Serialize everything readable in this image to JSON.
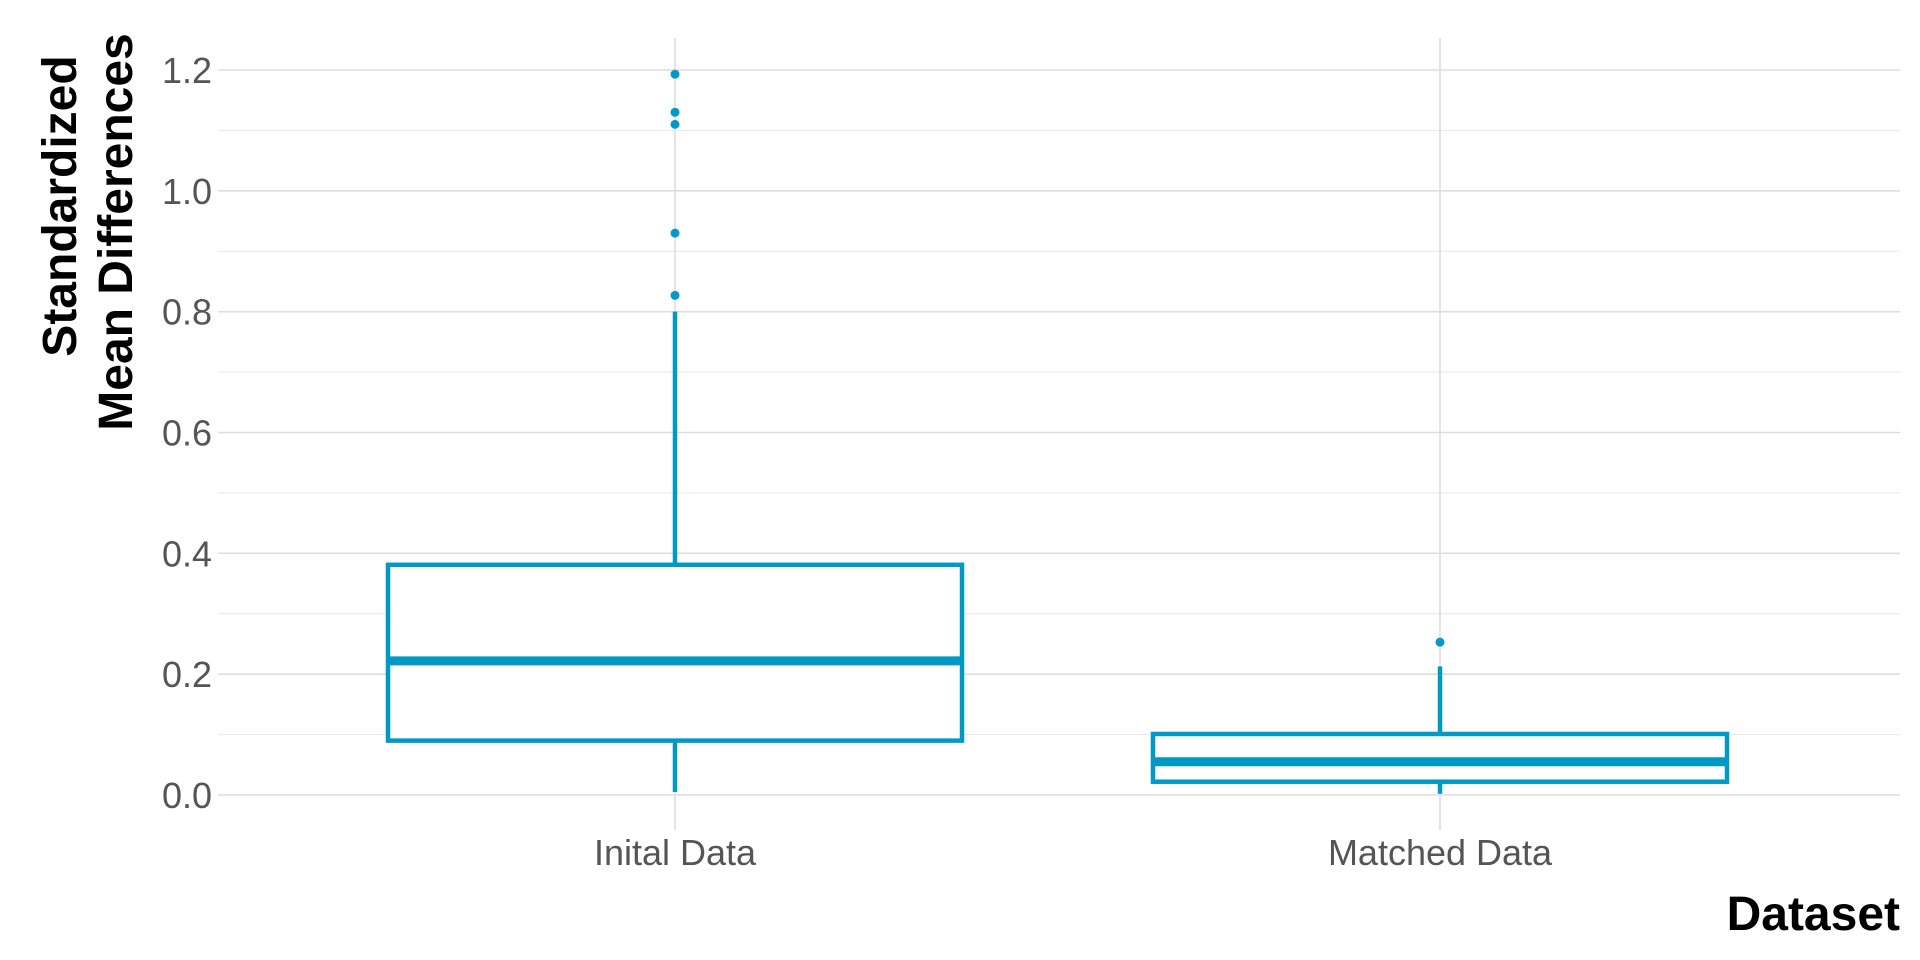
{
  "chart_data": {
    "type": "boxplot",
    "xlabel": "Dataset",
    "ylabel_lines": [
      "Standardized",
      "Mean Differences"
    ],
    "ylim": [
      -0.05,
      1.25
    ],
    "y_ticks": [
      0.0,
      0.2,
      0.4,
      0.6,
      0.8,
      1.0,
      1.2
    ],
    "y_tick_labels": [
      "0.0",
      "0.2",
      "0.4",
      "0.6",
      "0.8",
      "1.0",
      "1.2"
    ],
    "categories": [
      "Inital Data",
      "Matched Data"
    ],
    "boxes": [
      {
        "category": "Inital Data",
        "whisker_low": 0.005,
        "q1": 0.09,
        "median": 0.222,
        "q3": 0.381,
        "whisker_high": 0.8,
        "outliers": [
          0.827,
          0.93,
          1.11,
          1.13,
          1.193
        ]
      },
      {
        "category": "Matched Data",
        "whisker_low": 0.002,
        "q1": 0.022,
        "median": 0.055,
        "q3": 0.101,
        "whisker_high": 0.213,
        "outliers": [
          0.253
        ]
      }
    ],
    "grid": true,
    "legend": "none",
    "color": "#0099c6"
  }
}
